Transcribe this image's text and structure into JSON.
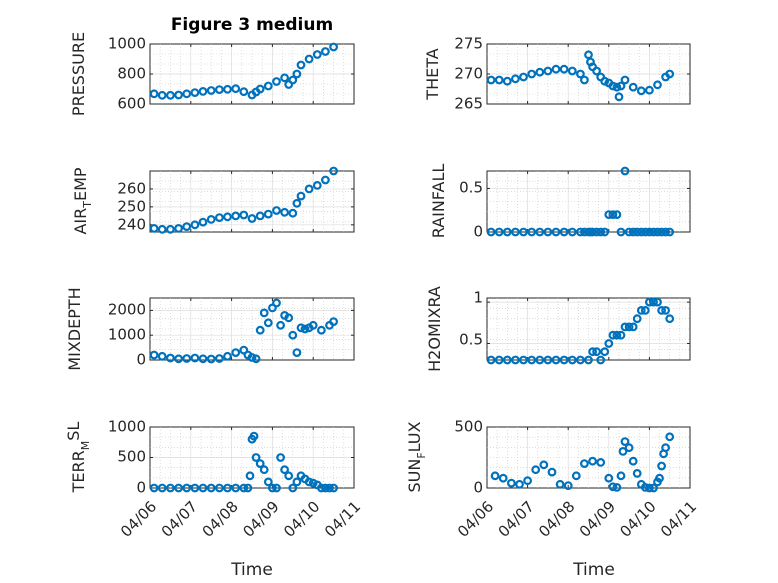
{
  "colors": {
    "marker": "#0072BD",
    "axis": "#262626",
    "grid": "#dcdcdc"
  },
  "chart_data": [
    {
      "type": "scatter",
      "title": "Figure 3 medium",
      "ylabel": "PRESSURE",
      "ylim": [
        600,
        1000
      ],
      "yticks": [
        600,
        800,
        1000
      ],
      "ytick_labels": [
        "600",
        "800",
        "1000"
      ],
      "xlim": [
        0,
        5
      ],
      "xtick_labels": [],
      "xlabel": "",
      "x": [
        0.1,
        0.3,
        0.5,
        0.7,
        0.9,
        1.1,
        1.3,
        1.5,
        1.7,
        1.9,
        2.1,
        2.3,
        2.5,
        2.6,
        2.7,
        2.9,
        3.1,
        3.3,
        3.4,
        3.5,
        3.6,
        3.7,
        3.9,
        4.1,
        4.3,
        4.5
      ],
      "y": [
        668,
        658,
        658,
        660,
        668,
        676,
        684,
        690,
        696,
        698,
        702,
        682,
        660,
        680,
        700,
        720,
        750,
        775,
        730,
        760,
        800,
        860,
        900,
        930,
        950,
        980
      ]
    },
    {
      "type": "scatter",
      "title": "",
      "ylabel": "THETA",
      "ylim": [
        265,
        275
      ],
      "yticks": [
        265,
        270,
        275
      ],
      "ytick_labels": [
        "265",
        "270",
        "275"
      ],
      "xlim": [
        0,
        5
      ],
      "xtick_labels": [],
      "xlabel": "",
      "x": [
        0.1,
        0.3,
        0.5,
        0.7,
        0.9,
        1.1,
        1.3,
        1.5,
        1.7,
        1.9,
        2.1,
        2.3,
        2.4,
        2.5,
        2.55,
        2.6,
        2.7,
        2.8,
        2.9,
        3.0,
        3.1,
        3.2,
        3.25,
        3.3,
        3.4,
        3.6,
        3.8,
        4.0,
        4.2,
        4.4,
        4.5
      ],
      "y": [
        269,
        269,
        268.8,
        269.2,
        269.5,
        270,
        270.3,
        270.5,
        270.8,
        270.8,
        270.5,
        270,
        269,
        273.2,
        272,
        271.2,
        270.5,
        269.5,
        268.8,
        268.5,
        268,
        267.8,
        266.2,
        268,
        269,
        267.8,
        267.2,
        267.3,
        268.2,
        269.5,
        270
      ]
    },
    {
      "type": "scatter",
      "title": "",
      "ylabel": "AIR_TEMP",
      "ylim": [
        236,
        270
      ],
      "yticks": [
        240,
        250,
        260
      ],
      "ytick_labels": [
        "240",
        "250",
        "260"
      ],
      "xlim": [
        0,
        5
      ],
      "xtick_labels": [],
      "xlabel": "",
      "x": [
        0.1,
        0.3,
        0.5,
        0.7,
        0.9,
        1.1,
        1.3,
        1.5,
        1.7,
        1.9,
        2.1,
        2.3,
        2.5,
        2.7,
        2.9,
        3.1,
        3.3,
        3.5,
        3.6,
        3.7,
        3.9,
        4.1,
        4.3,
        4.5
      ],
      "y": [
        238,
        237.5,
        237.5,
        238,
        239,
        240,
        241.5,
        243,
        244,
        244.5,
        245,
        245.5,
        243.5,
        245,
        246,
        248,
        247,
        246.5,
        252,
        256,
        260,
        262,
        265,
        270
      ]
    },
    {
      "type": "scatter",
      "title": "",
      "ylabel": "RAINFALL",
      "ylim": [
        0,
        0.7
      ],
      "yticks": [
        0,
        0.5
      ],
      "ytick_labels": [
        "0",
        "0.5"
      ],
      "xlim": [
        0,
        5
      ],
      "xtick_labels": [],
      "xlabel": "",
      "x": [
        0.1,
        0.3,
        0.5,
        0.7,
        0.9,
        1.1,
        1.3,
        1.5,
        1.7,
        1.9,
        2.1,
        2.3,
        2.4,
        2.5,
        2.55,
        2.6,
        2.7,
        2.8,
        2.9,
        3.0,
        3.1,
        3.2,
        3.3,
        3.4,
        3.5,
        3.6,
        3.7,
        3.8,
        3.9,
        4.0,
        4.1,
        4.2,
        4.3,
        4.4,
        4.5
      ],
      "y": [
        0,
        0,
        0,
        0,
        0,
        0,
        0,
        0,
        0,
        0,
        0,
        0,
        0,
        0,
        0,
        0,
        0,
        0,
        0,
        0.2,
        0.2,
        0.2,
        0,
        0.7,
        0,
        0,
        0,
        0,
        0,
        0,
        0,
        0,
        0,
        0,
        0
      ]
    },
    {
      "type": "scatter",
      "title": "",
      "ylabel": "MIXDEPTH",
      "ylim": [
        0,
        2500
      ],
      "yticks": [
        0,
        1000,
        2000
      ],
      "ytick_labels": [
        "0",
        "1000",
        "2000"
      ],
      "xlim": [
        0,
        5
      ],
      "xtick_labels": [],
      "xlabel": "",
      "x": [
        0.1,
        0.3,
        0.5,
        0.7,
        0.9,
        1.1,
        1.3,
        1.5,
        1.7,
        1.9,
        2.1,
        2.3,
        2.4,
        2.5,
        2.6,
        2.7,
        2.8,
        2.9,
        3.0,
        3.1,
        3.2,
        3.3,
        3.4,
        3.5,
        3.6,
        3.7,
        3.8,
        3.9,
        4.0,
        4.2,
        4.4,
        4.5
      ],
      "y": [
        200,
        150,
        80,
        50,
        60,
        80,
        50,
        40,
        60,
        150,
        300,
        400,
        200,
        100,
        50,
        1200,
        1900,
        1500,
        2100,
        2300,
        1400,
        1800,
        1700,
        1000,
        300,
        1300,
        1250,
        1300,
        1400,
        1200,
        1400,
        1550
      ]
    },
    {
      "type": "scatter",
      "title": "",
      "ylabel": "H2OMIXRA",
      "ylim": [
        0.3,
        1.05
      ],
      "yticks": [
        0.5,
        1
      ],
      "ytick_labels": [
        "0.5",
        "1"
      ],
      "xlim": [
        0,
        5
      ],
      "xtick_labels": [],
      "xlabel": "",
      "x": [
        0.1,
        0.3,
        0.5,
        0.7,
        0.9,
        1.1,
        1.3,
        1.5,
        1.7,
        1.9,
        2.1,
        2.3,
        2.5,
        2.6,
        2.7,
        2.8,
        2.9,
        3.0,
        3.1,
        3.2,
        3.3,
        3.4,
        3.5,
        3.6,
        3.7,
        3.8,
        3.9,
        4.0,
        4.1,
        4.2,
        4.3,
        4.4,
        4.5
      ],
      "y": [
        0.3,
        0.3,
        0.3,
        0.3,
        0.3,
        0.3,
        0.3,
        0.3,
        0.3,
        0.3,
        0.3,
        0.3,
        0.3,
        0.4,
        0.4,
        0.3,
        0.4,
        0.5,
        0.6,
        0.6,
        0.6,
        0.7,
        0.7,
        0.7,
        0.8,
        0.9,
        0.9,
        1,
        1,
        1,
        0.9,
        0.9,
        0.8
      ]
    },
    {
      "type": "scatter",
      "title": "",
      "ylabel": "TERR_MSL",
      "ylim": [
        0,
        1000
      ],
      "yticks": [
        0,
        500,
        1000
      ],
      "ytick_labels": [
        "0",
        "500",
        "1000"
      ],
      "xlim": [
        0,
        5
      ],
      "xticks": [
        0,
        1,
        2,
        3,
        4,
        5
      ],
      "xtick_labels": [
        "04/06",
        "04/07",
        "04/08",
        "04/09",
        "04/10",
        "04/11"
      ],
      "xlabel": "Time",
      "x": [
        0.1,
        0.3,
        0.5,
        0.7,
        0.9,
        1.1,
        1.3,
        1.5,
        1.7,
        1.9,
        2.1,
        2.3,
        2.4,
        2.45,
        2.5,
        2.55,
        2.6,
        2.7,
        2.8,
        2.9,
        3.0,
        3.1,
        3.2,
        3.3,
        3.4,
        3.5,
        3.6,
        3.7,
        3.8,
        3.9,
        4.0,
        4.1,
        4.2,
        4.3,
        4.4,
        4.5
      ],
      "y": [
        0,
        0,
        0,
        0,
        0,
        0,
        0,
        0,
        0,
        0,
        0,
        0,
        0,
        200,
        800,
        850,
        500,
        400,
        300,
        100,
        0,
        0,
        500,
        300,
        200,
        0,
        100,
        200,
        150,
        100,
        80,
        50,
        0,
        0,
        0,
        0
      ]
    },
    {
      "type": "scatter",
      "title": "",
      "ylabel": "SUN_FLUX",
      "ylim": [
        0,
        500
      ],
      "yticks": [
        0,
        500
      ],
      "ytick_labels": [
        "0",
        "500"
      ],
      "xlim": [
        0,
        5
      ],
      "xticks": [
        0,
        1,
        2,
        3,
        4,
        5
      ],
      "xtick_labels": [
        "04/06",
        "04/07",
        "04/08",
        "04/09",
        "04/10",
        "04/11"
      ],
      "xlabel": "Time",
      "x": [
        0.2,
        0.4,
        0.6,
        0.8,
        1.0,
        1.2,
        1.4,
        1.6,
        1.8,
        2.0,
        2.2,
        2.4,
        2.6,
        2.8,
        3.0,
        3.1,
        3.2,
        3.3,
        3.35,
        3.4,
        3.5,
        3.6,
        3.7,
        3.8,
        3.9,
        4.0,
        4.1,
        4.2,
        4.25,
        4.3,
        4.35,
        4.4,
        4.5
      ],
      "y": [
        100,
        80,
        40,
        30,
        60,
        150,
        190,
        130,
        30,
        20,
        100,
        200,
        220,
        210,
        80,
        10,
        5,
        100,
        300,
        380,
        330,
        220,
        120,
        30,
        5,
        0,
        0,
        50,
        80,
        180,
        280,
        330,
        420
      ]
    }
  ]
}
